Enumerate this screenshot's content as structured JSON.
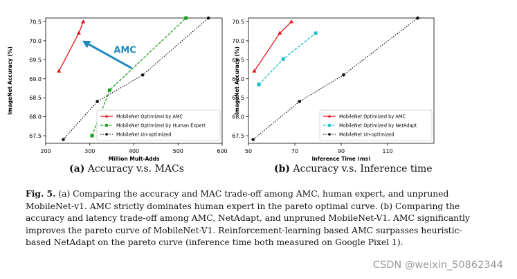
{
  "chart_data": [
    {
      "type": "line",
      "xlabel": "Million Mult-Adds",
      "ylabel": "ImageNet Accuracy (%)",
      "xlim": [
        200,
        600
      ],
      "ylim": [
        67.3,
        70.6
      ],
      "xticks": [
        200,
        300,
        400,
        500,
        600
      ],
      "yticks": [
        67.5,
        68.0,
        68.5,
        69.0,
        69.5,
        70.0,
        70.5
      ],
      "xtick_labels": [
        "200",
        "300",
        "400",
        "500",
        "600"
      ],
      "ytick_labels": [
        "67.5",
        "68.0",
        "68.5",
        "69.0",
        "69.5",
        "70.0",
        "70.5"
      ],
      "legend_position": "bottom-right",
      "series": [
        {
          "name": "MobileNet Optimized by AMC",
          "color": "#e8141b",
          "marker": "triangle",
          "dash": "solid",
          "x": [
            230,
            275,
            285
          ],
          "y": [
            69.2,
            70.2,
            70.5
          ]
        },
        {
          "name": "MobileNet Optimized by Human Expert",
          "color": "#17a01c",
          "marker": "square",
          "dash": "dashed",
          "x": [
            305,
            345,
            518
          ],
          "y": [
            67.5,
            68.7,
            70.6
          ]
        },
        {
          "name": "MobileNet Un-optimized",
          "color": "#111111",
          "marker": "circle",
          "dash": "dotted",
          "x": [
            240,
            317,
            420,
            569
          ],
          "y": [
            67.4,
            68.4,
            69.1,
            70.6
          ]
        }
      ],
      "annotation": {
        "text": "AMC",
        "color": "#1f88c2",
        "arrow_from": [
          395,
          69.28
        ],
        "arrow_to": [
          283,
          70.0
        ]
      }
    },
    {
      "type": "line",
      "xlabel": "Inference Time (ms)",
      "ylabel": "ImageNet Accuracy (%)",
      "xlim": [
        50,
        130
      ],
      "ylim": [
        67.3,
        70.6
      ],
      "xticks": [
        50,
        70,
        90,
        110
      ],
      "yticks": [
        67.5,
        68.0,
        68.5,
        69.0,
        69.5,
        70.0,
        70.5
      ],
      "xtick_labels": [
        "50",
        "70",
        "90",
        "110"
      ],
      "ytick_labels": [
        "67.5",
        "68.0",
        "68.5",
        "69.0",
        "69.5",
        "70.0",
        "70.5"
      ],
      "legend_position": "bottom-right",
      "series": [
        {
          "name": "MobileNet Optimized by AMC",
          "color": "#e8141b",
          "marker": "triangle",
          "dash": "solid",
          "x": [
            52.5,
            63.5,
            68.5
          ],
          "y": [
            69.2,
            70.2,
            70.5
          ]
        },
        {
          "name": "MobileNet Optimized by NetAdapt",
          "color": "#17bfcc",
          "marker": "square",
          "dash": "dashed",
          "x": [
            54.5,
            65,
            79
          ],
          "y": [
            68.85,
            69.52,
            70.2
          ]
        },
        {
          "name": "MobileNet Un-optimized",
          "color": "#111111",
          "marker": "circle",
          "dash": "dotted",
          "x": [
            52,
            72,
            91,
            123
          ],
          "y": [
            67.4,
            68.4,
            69.1,
            70.6
          ]
        }
      ]
    }
  ],
  "subcaptions": [
    {
      "label": "(a)",
      "text": "Accuracy v.s. MACs"
    },
    {
      "label": "(b)",
      "text": "Accuracy v.s. Inference time"
    }
  ],
  "caption": {
    "label": "Fig. 5.",
    "text": "(a) Comparing the accuracy and MAC trade-off among AMC, human expert, and unpruned MobileNet-v1. AMC strictly dominates human expert in the pareto optimal curve. (b) Comparing the accuracy and latency trade-off among AMC, NetAdapt, and unpruned MobileNet-V1. AMC significantly improves the pareto curve of MobileNet-V1. Reinforcement-learning based AMC surpasses heuristic-based NetAdapt on the pareto curve (inference time both measured on Google Pixel 1)."
  },
  "watermark": "CSDN @weixin_50862344"
}
